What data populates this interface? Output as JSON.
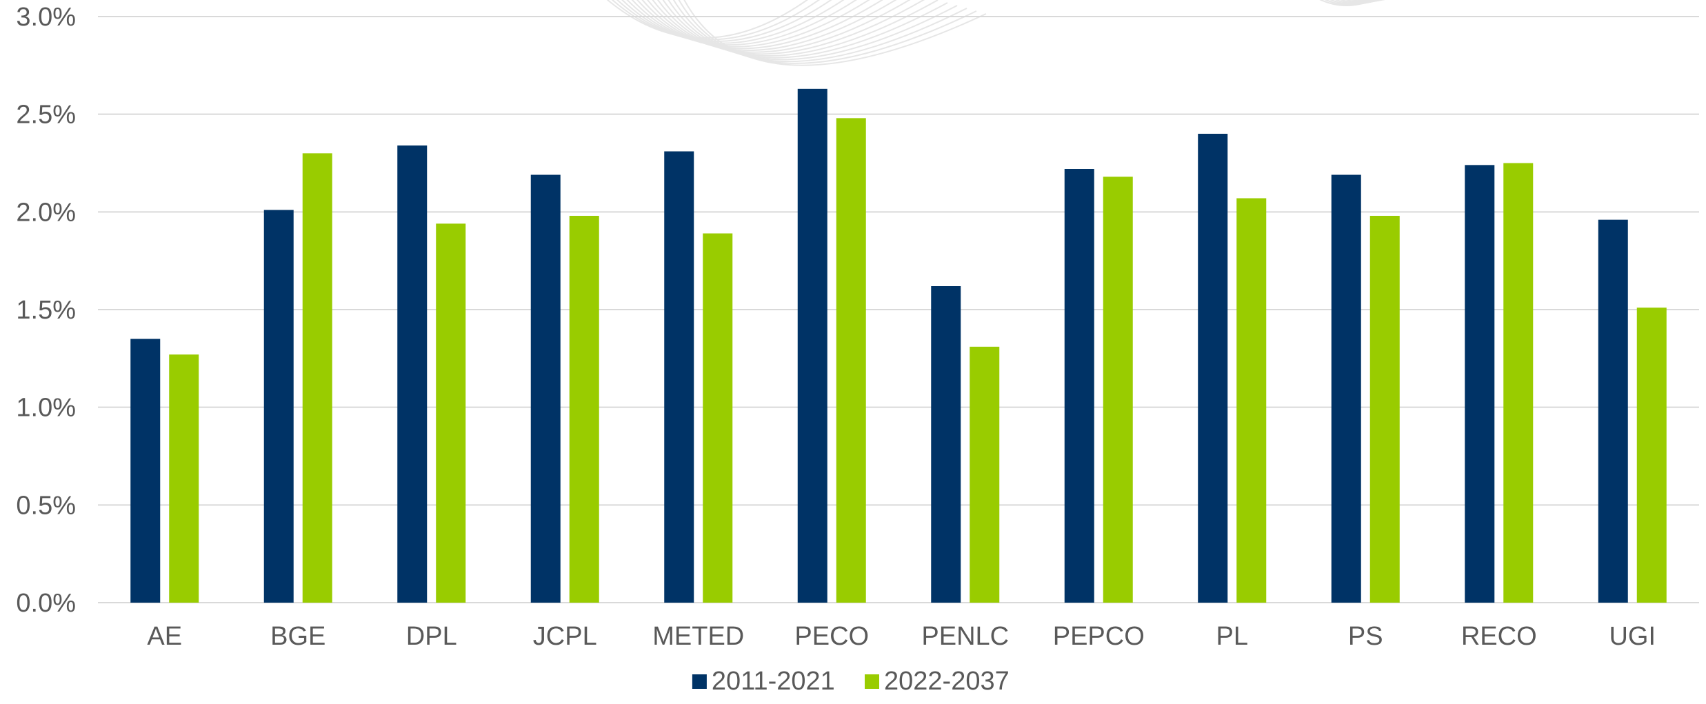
{
  "chart_data": {
    "type": "bar",
    "title": "",
    "xlabel": "",
    "ylabel": "",
    "categories": [
      "AE",
      "BGE",
      "DPL",
      "JCPL",
      "METED",
      "PECO",
      "PENLC",
      "PEPCO",
      "PL",
      "PS",
      "RECO",
      "UGI"
    ],
    "series": [
      {
        "name": "2011-2021",
        "color": "#003366",
        "values": [
          1.35,
          2.01,
          2.34,
          2.19,
          2.31,
          2.63,
          1.62,
          2.22,
          2.4,
          2.19,
          2.24,
          1.96
        ]
      },
      {
        "name": "2022-2037",
        "color": "#99CC00",
        "values": [
          1.27,
          2.3,
          1.94,
          1.98,
          1.89,
          2.48,
          1.31,
          2.18,
          2.07,
          1.98,
          2.25,
          1.51
        ]
      }
    ],
    "ylim": [
      0,
      3.0
    ],
    "yticks": [
      0.0,
      0.5,
      1.0,
      1.5,
      2.0,
      2.5,
      3.0
    ],
    "ytick_labels": [
      "0.0%",
      "0.5%",
      "1.0%",
      "1.5%",
      "2.0%",
      "2.5%",
      "3.0%"
    ],
    "grid": true,
    "legend_position": "bottom-center",
    "colors": {
      "grid": "#D9D9D9",
      "text": "#595959",
      "watermark": "#E6E6E6"
    }
  }
}
